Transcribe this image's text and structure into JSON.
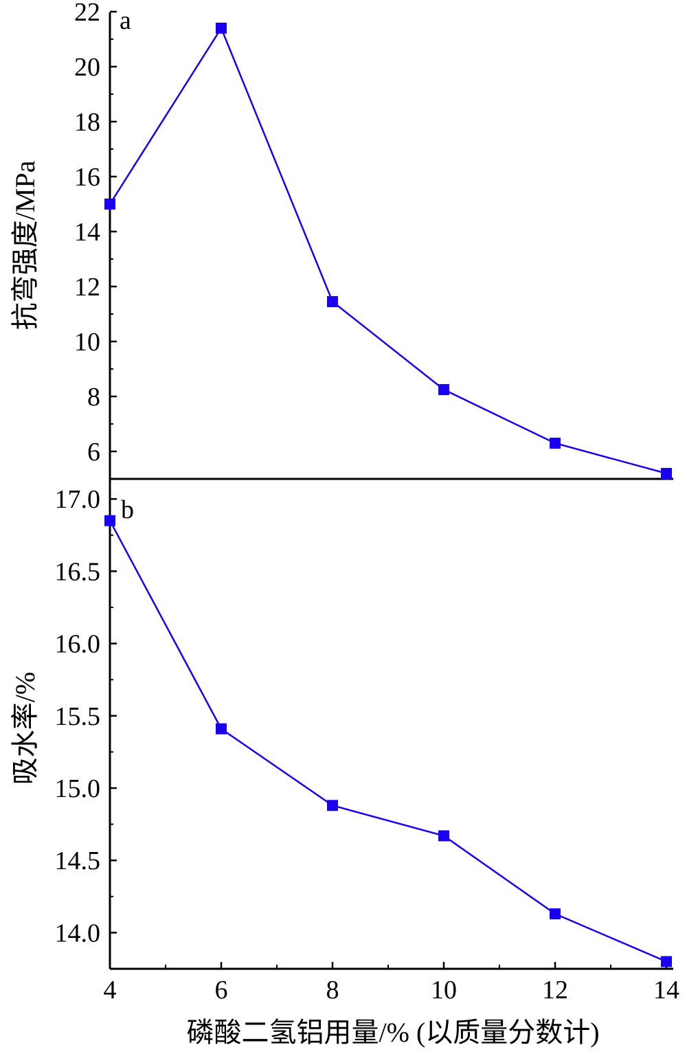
{
  "colors": {
    "series": "#1a00f0",
    "axis": "#000000"
  },
  "chart_data": [
    {
      "type": "line",
      "panel": "a",
      "ylabel": "抗弯强度/MPa",
      "x": [
        4,
        6,
        8,
        10,
        12,
        14
      ],
      "values": [
        15.0,
        21.4,
        11.45,
        8.25,
        6.3,
        5.2
      ],
      "xlim": [
        4,
        14
      ],
      "ylim": [
        5,
        22
      ],
      "yticks": [
        6,
        8,
        10,
        12,
        14,
        16,
        18,
        20,
        22
      ],
      "ytick_labels": [
        "6",
        "8",
        "10",
        "12",
        "14",
        "16",
        "18",
        "20",
        "22"
      ],
      "marker": "square",
      "grid": false
    },
    {
      "type": "line",
      "panel": "b",
      "xlabel": "磷酸二氢铝用量/% (以质量分数计)",
      "ylabel": "吸水率/%",
      "x": [
        4,
        6,
        8,
        10,
        12,
        14
      ],
      "values": [
        16.85,
        15.41,
        14.88,
        14.67,
        14.13,
        13.8
      ],
      "xlim": [
        4,
        14
      ],
      "ylim": [
        13.75,
        17.0
      ],
      "xticks": [
        4,
        6,
        8,
        10,
        12,
        14
      ],
      "xtick_labels": [
        "4",
        "6",
        "8",
        "10",
        "12",
        "14"
      ],
      "yticks": [
        14.0,
        14.5,
        15.0,
        15.5,
        16.0,
        16.5,
        17.0
      ],
      "ytick_labels": [
        "14.0",
        "14.5",
        "15.0",
        "15.5",
        "16.0",
        "16.5",
        "17.0"
      ],
      "marker": "square",
      "grid": false
    }
  ]
}
